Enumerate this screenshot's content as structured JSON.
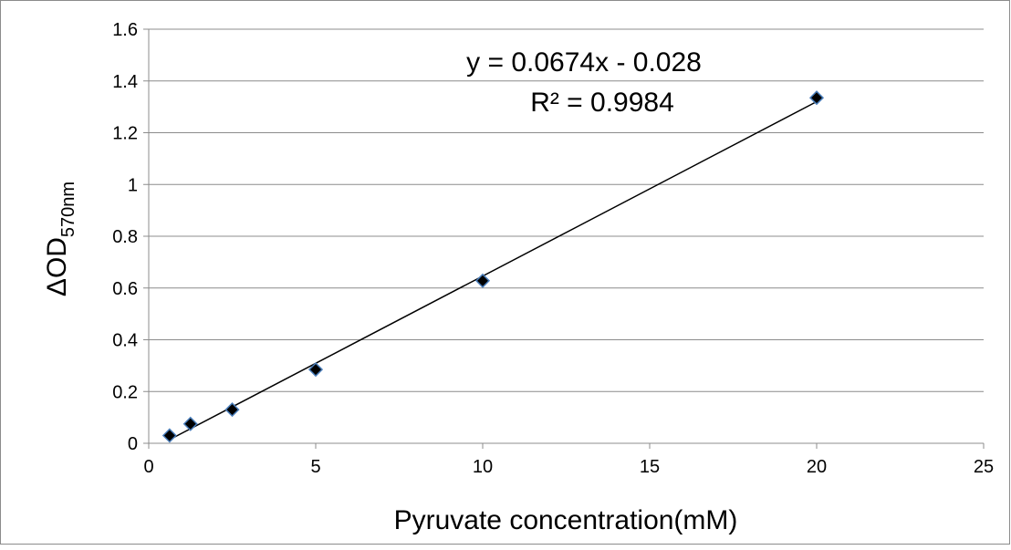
{
  "chart_data": {
    "type": "scatter",
    "xlabel": "Pyruvate concentration(mM)",
    "ylabel_main": "ΔOD",
    "ylabel_sub": "570nm",
    "xlim": [
      0,
      25
    ],
    "ylim": [
      0,
      1.6
    ],
    "x_ticks": [
      0,
      5,
      10,
      15,
      20,
      25
    ],
    "y_ticks": [
      0,
      0.2,
      0.4,
      0.6,
      0.8,
      1,
      1.2,
      1.4,
      1.6
    ],
    "grid": "horizontal",
    "legend": "none",
    "series": [
      {
        "points": [
          {
            "x": 0.625,
            "y": 0.03
          },
          {
            "x": 1.25,
            "y": 0.075
          },
          {
            "x": 2.5,
            "y": 0.13
          },
          {
            "x": 5,
            "y": 0.285
          },
          {
            "x": 10,
            "y": 0.628
          },
          {
            "x": 20,
            "y": 1.335
          }
        ],
        "marker_fill": "#000000",
        "marker_edge": "#4a7ebb"
      }
    ],
    "trendline": {
      "slope": 0.0674,
      "intercept": -0.028,
      "x_range": [
        0.625,
        20
      ],
      "color": "#000000",
      "equation_label": "y = 0.0674x - 0.028",
      "r2_label": "R² = 0.9984"
    }
  }
}
